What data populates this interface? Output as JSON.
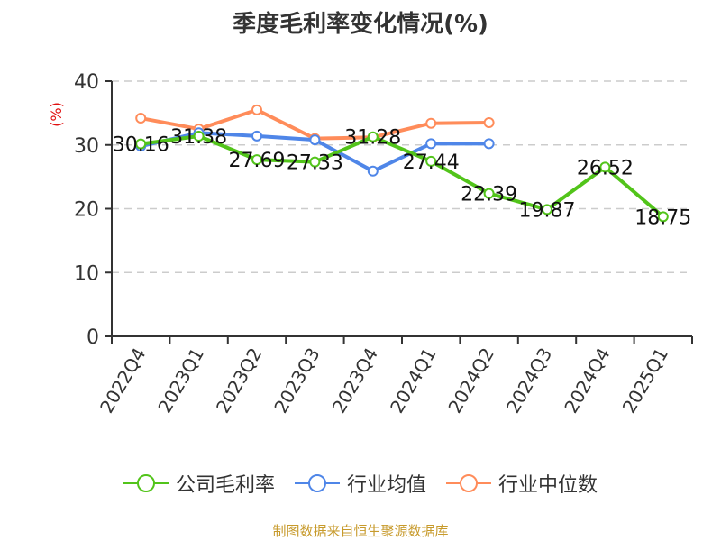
{
  "title": "季度毛利率变化情况(%)",
  "source": "制图数据来自恒生聚源数据库",
  "colors": {
    "company": "#52c41a",
    "avg": "#4f86e8",
    "median": "#ff8c5a",
    "ylabel": "#e01010"
  },
  "chart_data": {
    "type": "line",
    "title": "季度毛利率变化情况(%)",
    "xlabel": "",
    "ylabel": "(%)",
    "ylim": [
      0,
      40
    ],
    "yticks": [
      0,
      10,
      20,
      30,
      40
    ],
    "grid": true,
    "legend_position": "bottom",
    "categories": [
      "2022Q4",
      "2023Q1",
      "2023Q2",
      "2023Q3",
      "2023Q4",
      "2024Q1",
      "2024Q2",
      "2024Q3",
      "2024Q4",
      "2025Q1"
    ],
    "series": [
      {
        "name": "公司毛利率",
        "color": "#52c41a",
        "values": [
          30.16,
          31.38,
          27.69,
          27.33,
          31.28,
          27.44,
          22.39,
          19.87,
          26.52,
          18.75
        ],
        "labels": true
      },
      {
        "name": "行业均值",
        "color": "#4f86e8",
        "values": [
          29.8,
          31.9,
          31.4,
          30.8,
          25.9,
          30.2,
          30.2,
          null,
          null,
          null
        ],
        "labels": false
      },
      {
        "name": "行业中位数",
        "color": "#ff8c5a",
        "values": [
          34.2,
          32.5,
          35.5,
          31.0,
          31.2,
          33.4,
          33.5,
          null,
          null,
          null
        ],
        "labels": false
      }
    ]
  },
  "legend": [
    {
      "label": "公司毛利率",
      "color": "#52c41a"
    },
    {
      "label": "行业均值",
      "color": "#4f86e8"
    },
    {
      "label": "行业中位数",
      "color": "#ff8c5a"
    }
  ]
}
